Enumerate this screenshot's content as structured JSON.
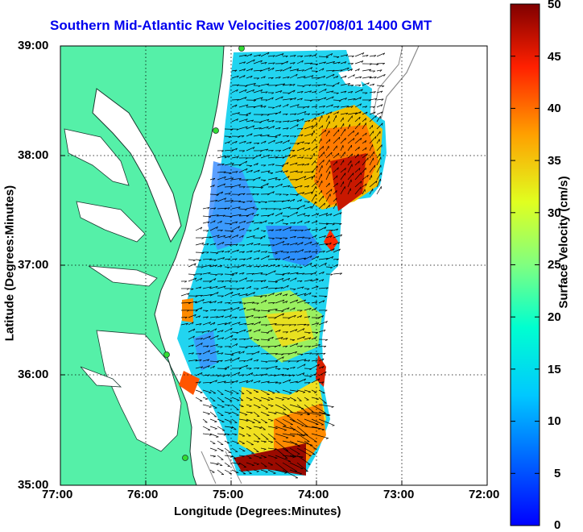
{
  "title": "Southern Mid-Atlantic Raw Velocities 2007/08/01 1400 GMT",
  "axes": {
    "xlabel": "Longitude (Degrees:Minutes)",
    "ylabel": "Latitude (Degrees:Minutes)",
    "x_ticks": [
      "77:00",
      "76:00",
      "75:00",
      "74:00",
      "73:00",
      "72:00"
    ],
    "y_ticks": [
      "39:00",
      "38:00",
      "37:00",
      "36:00",
      "35:00"
    ],
    "xlim": [
      -77,
      -72
    ],
    "ylim": [
      35,
      39
    ],
    "grid": "dotted"
  },
  "colorbar": {
    "label": "Surface Velocity (cm/s)",
    "ticks": [
      "50",
      "45",
      "40",
      "35",
      "30",
      "25",
      "20",
      "15",
      "10",
      "5",
      "0"
    ],
    "range": [
      0,
      50
    ],
    "colormap": "jet"
  },
  "colors": {
    "land": "#55f0a8",
    "coast": "#1a3a30",
    "bathymetry": "#8a8a8a",
    "stations": "#33dd33",
    "title": "#0000ee"
  }
}
